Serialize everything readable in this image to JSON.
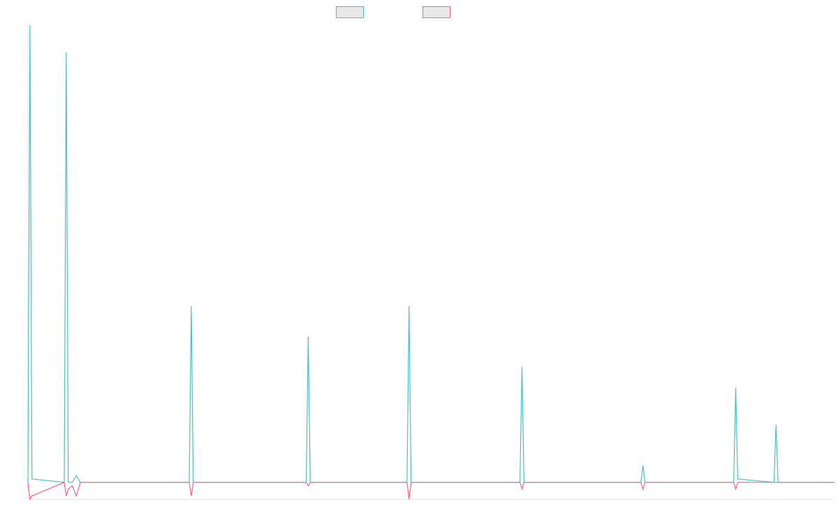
{
  "chart_data": {
    "type": "line",
    "title": "",
    "xlabel": "",
    "ylabel": "",
    "grid": false,
    "legend_position": "top-center",
    "x": [
      0,
      0.5,
      1,
      9,
      9.5,
      10,
      11,
      12,
      12.5,
      13,
      40,
      40.5,
      41,
      69,
      69.5,
      70,
      90,
      94,
      94.5,
      95,
      99,
      122,
      122.5,
      123,
      152,
      152.5,
      153,
      175,
      175.5,
      176,
      185,
      185.5,
      186,
      190,
      197,
      197.5,
      198,
      200
    ],
    "series": [
      {
        "values": [
          0,
          135,
          1,
          0,
          127,
          0,
          0,
          2,
          1,
          0,
          0,
          52,
          0,
          0,
          43,
          0,
          0,
          0,
          52,
          0,
          0,
          0,
          34,
          0,
          0,
          5,
          0,
          0,
          28,
          1,
          0,
          17,
          0,
          0,
          0,
          0,
          0,
          0
        ],
        "color": "#4bc0c0"
      },
      {
        "values": [
          0,
          -5,
          -4,
          0,
          -4,
          -2,
          -1,
          -4,
          -2,
          0,
          0,
          -4,
          0,
          0,
          -1,
          0,
          0,
          0,
          -5,
          0,
          0,
          0,
          -2,
          0,
          0,
          -2,
          0,
          0,
          -2,
          0,
          0,
          0,
          0,
          0,
          0,
          0,
          0,
          0
        ],
        "color": "#ff6384"
      }
    ],
    "xlim": [
      0,
      200
    ],
    "ylim": [
      -5,
      135
    ]
  }
}
